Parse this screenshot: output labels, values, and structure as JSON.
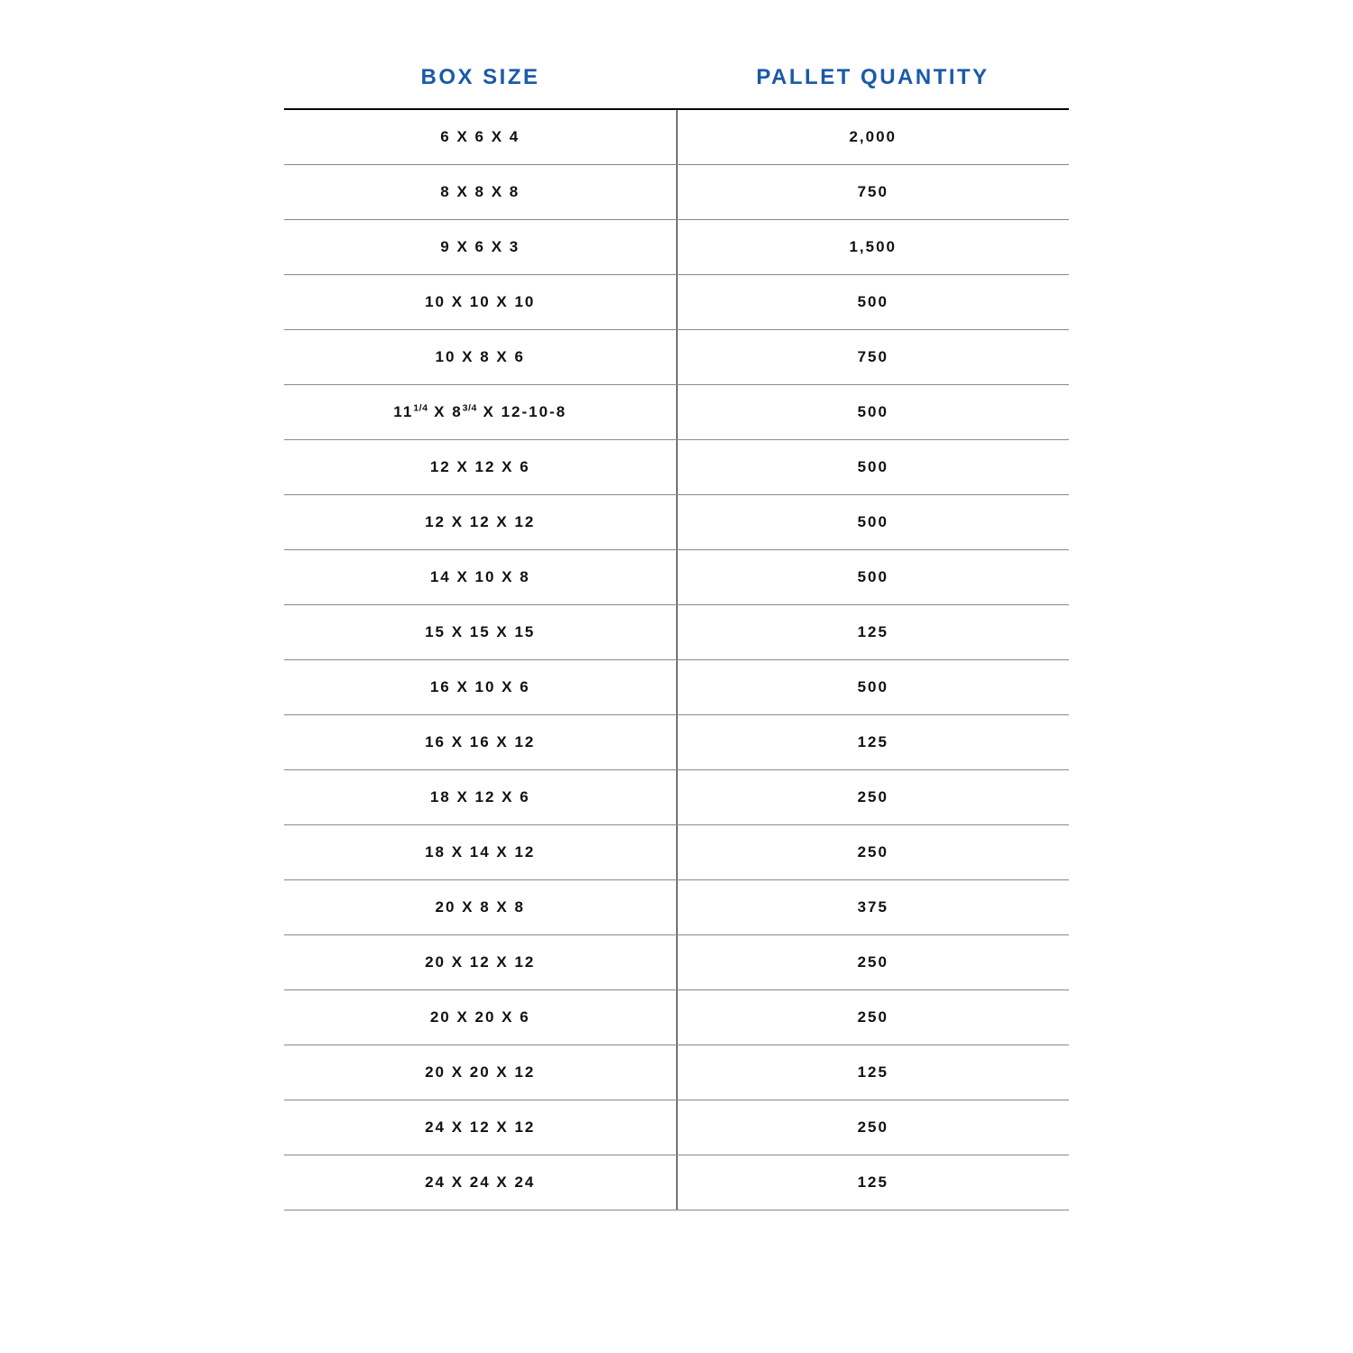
{
  "table": {
    "type": "table",
    "columns": [
      "BOX SIZE",
      "PALLET QUANTITY"
    ],
    "header_color": "#1a5aa8",
    "header_fontsize": 24,
    "header_letter_spacing": 2.5,
    "text_color": "#111111",
    "body_fontsize": 17,
    "body_letter_spacing": 2,
    "top_border_color": "#000000",
    "row_border_color": "#888888",
    "background_color": "#ffffff",
    "column_align": [
      "center",
      "center"
    ],
    "rows": [
      {
        "size": "6 X 6 X 4",
        "qty": "2,000"
      },
      {
        "size": "8 X 8 X 8",
        "qty": "750"
      },
      {
        "size": "9 X 6 X 3",
        "qty": "1,500"
      },
      {
        "size": "10 X 10 X 10",
        "qty": "500"
      },
      {
        "size": "10 X 8 X 6",
        "qty": "750"
      },
      {
        "size_html": "11<sup>1/4</sup> X 8<sup>3/4</sup> X 12-10-8",
        "size": "11 1/4 X 8 3/4 X 12-10-8",
        "qty": "500"
      },
      {
        "size": "12 X 12 X 6",
        "qty": "500"
      },
      {
        "size": "12 X 12 X 12",
        "qty": "500"
      },
      {
        "size": "14 X 10 X 8",
        "qty": "500"
      },
      {
        "size": "15 X 15 X 15",
        "qty": "125"
      },
      {
        "size": "16 X 10 X 6",
        "qty": "500"
      },
      {
        "size": "16 X 16 X 12",
        "qty": "125"
      },
      {
        "size": "18 X 12 X 6",
        "qty": "250"
      },
      {
        "size": "18 X 14 X 12",
        "qty": "250"
      },
      {
        "size": "20 X 8 X 8",
        "qty": "375"
      },
      {
        "size": "20 X 12 X 12",
        "qty": "250"
      },
      {
        "size": "20 X 20 X 6",
        "qty": "250"
      },
      {
        "size": "20 X 20 X 12",
        "qty": "125"
      },
      {
        "size": "24 X 12 X 12",
        "qty": "250"
      },
      {
        "size": "24 X 24 X 24",
        "qty": "125"
      }
    ]
  }
}
